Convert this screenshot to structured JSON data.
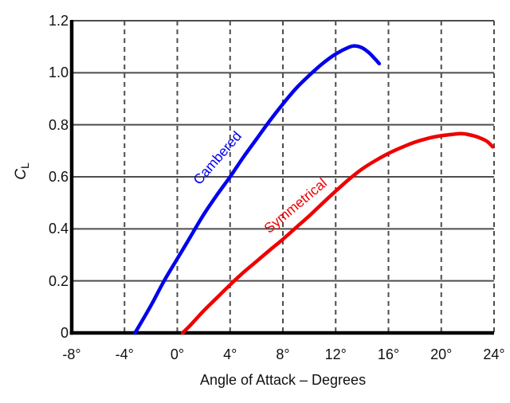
{
  "chart_data": {
    "type": "line",
    "title": "",
    "xlabel": "Angle of Attack – Degrees",
    "ylabel_main": "C",
    "ylabel_sub": "L",
    "xlim": [
      -8,
      24
    ],
    "ylim": [
      0,
      1.2
    ],
    "x_ticks": [
      -8,
      -4,
      0,
      4,
      8,
      12,
      16,
      20,
      24
    ],
    "x_tick_labels": [
      "-8°",
      "-4°",
      "0°",
      "4°",
      "8°",
      "12°",
      "16°",
      "20°",
      "24°"
    ],
    "y_ticks": [
      0,
      0.2,
      0.4,
      0.6,
      0.8,
      1,
      1.2
    ],
    "y_tick_labels": [
      "0",
      "0.2",
      "0.4",
      "0.6",
      "0.8",
      "1.0",
      "1.2"
    ],
    "grid": {
      "horizontal": "solid",
      "vertical": "dashed",
      "color": "#4d4d4d"
    },
    "axis_color": "#000000",
    "legend_position": "inline-rotated-labels",
    "series": [
      {
        "name": "Cambered",
        "color": "#0000ee",
        "label": {
          "x": 3.05,
          "y": 0.667,
          "angle_deg": -49
        },
        "points": [
          [
            -3.2,
            0
          ],
          [
            -2,
            0.105
          ],
          [
            -1,
            0.2
          ],
          [
            0,
            0.285
          ],
          [
            1,
            0.37
          ],
          [
            2,
            0.455
          ],
          [
            3,
            0.53
          ],
          [
            4,
            0.6
          ],
          [
            5,
            0.675
          ],
          [
            6,
            0.745
          ],
          [
            7,
            0.815
          ],
          [
            8,
            0.88
          ],
          [
            9,
            0.94
          ],
          [
            10,
            0.99
          ],
          [
            11,
            1.035
          ],
          [
            12,
            1.072
          ],
          [
            13,
            1.098
          ],
          [
            13.5,
            1.103
          ],
          [
            14,
            1.096
          ],
          [
            14.5,
            1.078
          ],
          [
            15,
            1.052
          ],
          [
            15.3,
            1.035
          ]
        ]
      },
      {
        "name": "Symmetrical",
        "color": "#ee0000",
        "label": {
          "x": 8.97,
          "y": 0.484,
          "angle_deg": -40
        },
        "points": [
          [
            0.4,
            0
          ],
          [
            1,
            0.03
          ],
          [
            2,
            0.085
          ],
          [
            3,
            0.135
          ],
          [
            4,
            0.185
          ],
          [
            5,
            0.232
          ],
          [
            6,
            0.275
          ],
          [
            7,
            0.318
          ],
          [
            8,
            0.36
          ],
          [
            9,
            0.405
          ],
          [
            10,
            0.45
          ],
          [
            11,
            0.498
          ],
          [
            12,
            0.545
          ],
          [
            13,
            0.59
          ],
          [
            14,
            0.63
          ],
          [
            15,
            0.662
          ],
          [
            16,
            0.69
          ],
          [
            17,
            0.713
          ],
          [
            18,
            0.733
          ],
          [
            19,
            0.748
          ],
          [
            20,
            0.758
          ],
          [
            21,
            0.764
          ],
          [
            21.5,
            0.766
          ],
          [
            22,
            0.763
          ],
          [
            22.5,
            0.757
          ],
          [
            23,
            0.748
          ],
          [
            23.5,
            0.735
          ],
          [
            23.9,
            0.715
          ]
        ]
      }
    ]
  }
}
